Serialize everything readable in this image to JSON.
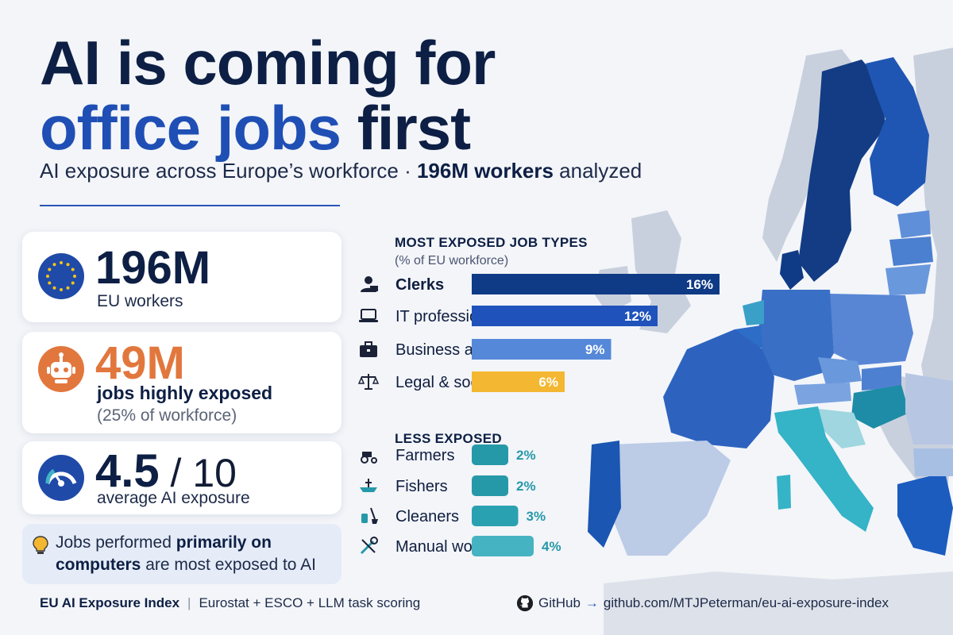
{
  "title": {
    "line1": "AI is coming for",
    "line2_accent": "office jobs",
    "line2_rest": " first"
  },
  "subtitle": {
    "lead": "AI exposure across Europe’s workforce · ",
    "bold": "196M workers",
    "tail": " analyzed"
  },
  "stats": [
    {
      "icon": "eu-flag-icon",
      "value": "196M",
      "label": "EU workers"
    },
    {
      "icon": "robot-icon",
      "value": "49M",
      "label": "jobs highly exposed",
      "sublabel": "(25% of workforce)"
    },
    {
      "icon": "gauge-icon",
      "value": "4.5",
      "suffix": " / 10",
      "label": "average AI exposure"
    }
  ],
  "note": {
    "pre": "Jobs performed ",
    "bold1": "primarily on",
    "bold2": "computers",
    "post": " are most exposed to AI",
    "icon": "lightbulb-icon"
  },
  "chart_data": {
    "type": "bar",
    "groups": [
      {
        "title": "MOST EXPOSED JOB TYPES",
        "subtitle": "(% of EU workforce)",
        "items": [
          {
            "label": "Clerks",
            "value": 16,
            "value_label": "16%",
            "icon": "clerk-icon",
            "color": "#0f3a85"
          },
          {
            "label": "IT professionals",
            "value": 12,
            "value_label": "12%",
            "icon": "laptop-icon",
            "color": "#1f53bb"
          },
          {
            "label": "Business admin",
            "value": 9,
            "value_label": "9%",
            "icon": "briefcase-icon",
            "color": "#5588d8"
          },
          {
            "label": "Legal & social",
            "value": 6,
            "value_label": "6%",
            "icon": "scales-icon",
            "color": "#f4b731"
          }
        ]
      },
      {
        "title": "LESS EXPOSED",
        "items": [
          {
            "label": "Farmers",
            "value": 2,
            "value_label": "2%",
            "icon": "tractor-icon",
            "color": "#2699a8"
          },
          {
            "label": "Fishers",
            "value": 2,
            "value_label": "2%",
            "icon": "boat-icon",
            "color": "#2699a8"
          },
          {
            "label": "Cleaners",
            "value": 3,
            "value_label": "3%",
            "icon": "cleaning-icon",
            "color": "#2aa1b1"
          },
          {
            "label": "Manual workers",
            "value": 4,
            "value_label": "4%",
            "icon": "tools-icon",
            "color": "#45b3c1"
          }
        ]
      }
    ]
  },
  "footer": {
    "brand": "EU AI Exposure Index",
    "sources": "Eurostat + ESCO + LLM task scoring",
    "github_label": "GitHub",
    "arrow": "→",
    "repo": "github.com/MTJPeterman/eu-ai-exposure-index"
  }
}
